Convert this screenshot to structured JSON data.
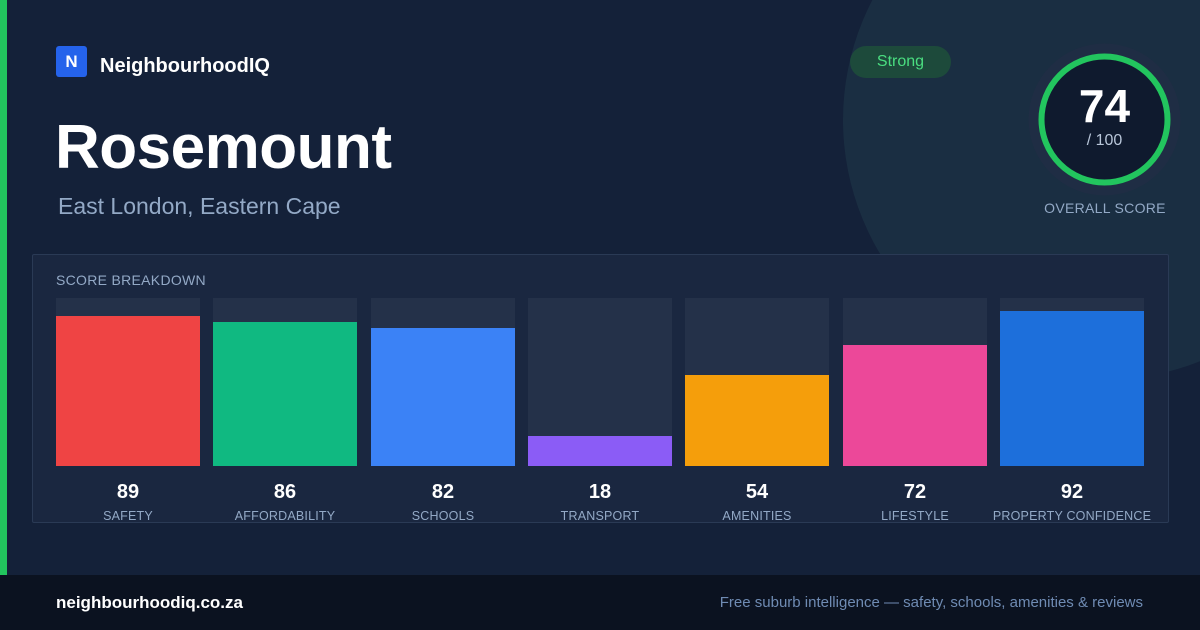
{
  "brand": {
    "logo_letter": "N",
    "name": "NeighbourhoodIQ"
  },
  "header": {
    "title": "Rosemount",
    "subtitle": "East London, Eastern Cape",
    "badge": "Strong"
  },
  "overall": {
    "score": "74",
    "max_label": "/ 100",
    "label": "OVERALL SCORE",
    "fraction": 0.74
  },
  "breakdown": {
    "title": "SCORE BREAKDOWN"
  },
  "chart_data": {
    "type": "bar",
    "categories": [
      "SAFETY",
      "AFFORDABILITY",
      "SCHOOLS",
      "TRANSPORT",
      "AMENITIES",
      "LIFESTYLE",
      "PROPERTY CONFIDENCE"
    ],
    "values": [
      89,
      86,
      82,
      18,
      54,
      72,
      92
    ],
    "colors": [
      "#ef4444",
      "#10b981",
      "#3b82f6",
      "#8b5cf6",
      "#f59e0b",
      "#ec4899",
      "#1d6fdb"
    ],
    "ylim": [
      0,
      100
    ],
    "title": "SCORE BREAKDOWN"
  },
  "colors": {
    "accent": "#22c55e",
    "background": "#142139",
    "footer": "#0b1220"
  },
  "footer": {
    "url": "neighbourhoodiq.co.za",
    "tagline": "Free suburb intelligence — safety, schools, amenities & reviews"
  }
}
